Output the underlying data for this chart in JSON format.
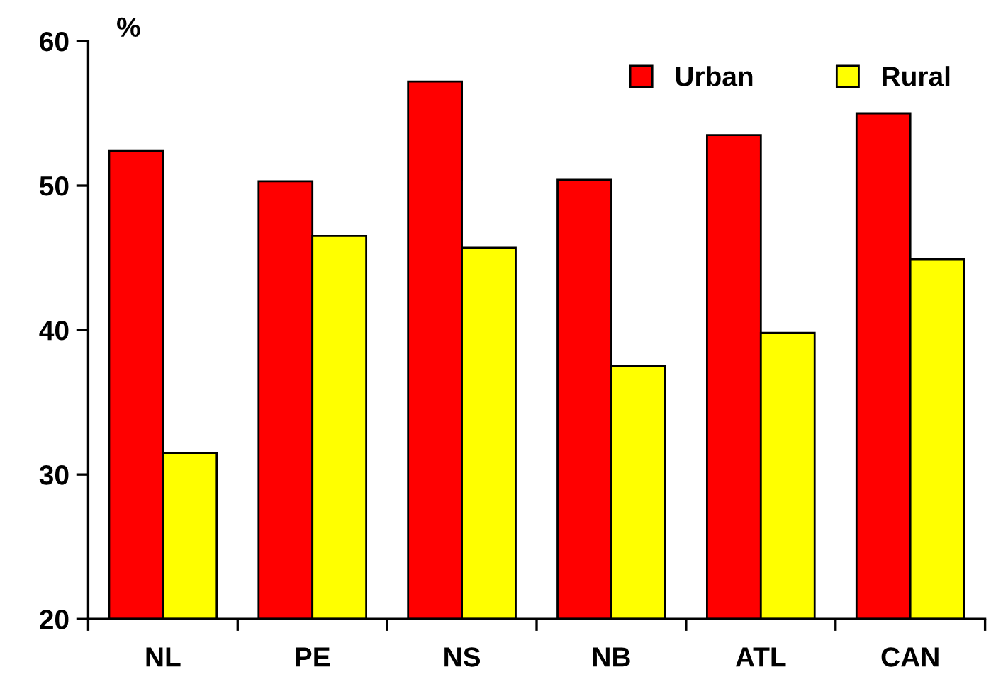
{
  "chart_data": {
    "type": "bar",
    "ylabel": "%",
    "categories": [
      "NL",
      "PE",
      "NS",
      "NB",
      "ATL",
      "CAN"
    ],
    "series": [
      {
        "name": "Urban",
        "color": "#ff0000",
        "values": [
          52.4,
          50.3,
          57.2,
          50.4,
          53.5,
          55.0
        ]
      },
      {
        "name": "Rural",
        "color": "#ffff00",
        "values": [
          31.5,
          46.5,
          45.7,
          37.5,
          39.8,
          44.9
        ]
      }
    ],
    "ylim": [
      20,
      60
    ],
    "yticks": [
      20,
      30,
      40,
      50,
      60
    ],
    "grid": false,
    "legend": "top right"
  }
}
